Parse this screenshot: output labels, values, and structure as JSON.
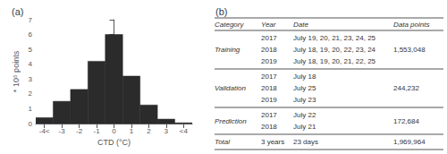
{
  "chart_data": [
    {
      "type": "histogram",
      "title": "(a)",
      "bins": [
        -4.5,
        -3.5,
        -2.5,
        -1.5,
        -0.5,
        0.5,
        1.5,
        2.5,
        3.5,
        4.5
      ],
      "values": [
        0.4,
        1.5,
        2.3,
        4.2,
        6.0,
        3.2,
        1.25,
        0.3,
        0.05
      ],
      "color": "#2b2b2b",
      "x_label": "CTD (°C)",
      "y_label": "* 10⁵ points",
      "xlim": [
        -4.5,
        4.5
      ],
      "xticks": [
        {
          "value": -4,
          "label": "-4<"
        },
        -3,
        -2,
        -1,
        0,
        1,
        2,
        3,
        {
          "value": 4,
          "label": "<4"
        }
      ],
      "ylim": [
        0,
        7
      ],
      "yticks": [
        0,
        1,
        2,
        3,
        4,
        5,
        6,
        7
      ],
      "grid": false
    },
    {
      "type": "table",
      "title": "(b)",
      "color": "#555555",
      "columns": [
        "Category",
        "Year",
        "Date",
        "Data points"
      ],
      "rows": [
        [
          "Training",
          [
            "2017",
            "2018",
            "2019"
          ],
          [
            "July 19, 20, 21, 23, 24, 25",
            "July 18, 19, 20, 22, 23, 24",
            "July 18, 19, 20, 21, 22, 25"
          ],
          "1,553,048"
        ],
        [
          "Validation",
          [
            "2017",
            "2018",
            "2019"
          ],
          [
            "July 18",
            "July 25",
            "July 23"
          ],
          "244,232"
        ],
        [
          "Prediction",
          [
            "2017",
            "2018"
          ],
          [
            "July 22",
            "July 21"
          ],
          "172,684"
        ],
        [
          "Total",
          [
            "3 years"
          ],
          [
            "23 days"
          ],
          "1,969,964"
        ]
      ]
    }
  ]
}
